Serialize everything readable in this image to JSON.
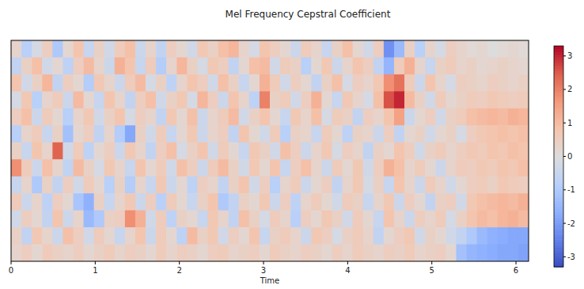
{
  "chart_data": {
    "type": "heatmap",
    "title": "Mel Frequency Cepstral Coefficient",
    "x_label": "Time",
    "xlim": [
      0,
      6.15
    ],
    "xticks": [
      0,
      1,
      2,
      3,
      4,
      5,
      6
    ],
    "tick_labels": "x",
    "colorbar_range": [
      -3.3,
      3.3
    ],
    "colorbar_ticks": [
      3,
      2,
      1,
      0,
      -1,
      -2,
      -3
    ],
    "cells": [
      [
        0.3,
        -0.8,
        -0.2,
        0.5,
        -1.0,
        0.2,
        0.8,
        -0.5,
        0.4,
        -0.3,
        0.6,
        0.9,
        -0.4,
        0.3,
        -0.6,
        0.5,
        0.2,
        -0.3,
        0.7,
        0.4,
        0.9,
        1.1,
        0.3,
        -0.2,
        0.8,
        0.5,
        0.2,
        -0.4,
        0.6,
        0.3,
        -0.5,
        0.4,
        0.9,
        0.2,
        -0.3,
        0.5,
        -2.2,
        -1.4,
        0.4,
        -0.8,
        0.3,
        -0.2,
        0.5,
        0.3,
        0.1,
        0.2,
        0.0,
        0.1,
        0.2,
        0.1
      ],
      [
        -0.6,
        0.4,
        0.9,
        -0.3,
        0.2,
        -0.7,
        0.5,
        1.0,
        0.3,
        -0.4,
        1.2,
        0.8,
        -0.5,
        0.6,
        -0.9,
        0.3,
        1.1,
        0.4,
        -0.2,
        0.7,
        0.5,
        -0.6,
        0.2,
        0.9,
        1.0,
        -0.3,
        0.6,
        0.4,
        -0.8,
        0.2,
        0.7,
        -0.4,
        0.3,
        0.8,
        0.5,
        -0.6,
        -1.5,
        0.6,
        1.2,
        0.3,
        -0.5,
        0.4,
        0.6,
        0.3,
        0.4,
        0.2,
        0.3,
        0.4,
        0.3,
        0.2
      ],
      [
        0.8,
        -0.3,
        0.4,
        1.1,
        -0.6,
        0.5,
        0.2,
        -0.9,
        0.7,
        0.3,
        -0.4,
        0.6,
        1.0,
        -0.2,
        0.4,
        -0.7,
        0.3,
        0.8,
        0.5,
        -0.3,
        0.9,
        0.4,
        -0.5,
        0.2,
        1.2,
        0.6,
        -0.3,
        0.5,
        0.2,
        -0.6,
        0.4,
        0.9,
        -0.2,
        0.5,
        0.3,
        0.7,
        1.8,
        2.2,
        0.6,
        -0.4,
        0.8,
        0.3,
        -0.2,
        0.5,
        0.4,
        0.3,
        0.5,
        0.4,
        0.3,
        0.4
      ],
      [
        -0.2,
        0.7,
        -0.8,
        0.3,
        0.6,
        -0.4,
        1.0,
        0.2,
        -0.5,
        0.8,
        0.3,
        -0.6,
        0.5,
        0.9,
        -0.3,
        0.4,
        0.7,
        -0.2,
        1.1,
        0.5,
        -0.4,
        0.8,
        0.3,
        -0.7,
        2.0,
        0.4,
        0.6,
        -0.3,
        0.5,
        1.2,
        0.2,
        -0.5,
        0.7,
        0.3,
        -0.2,
        0.9,
        2.6,
        3.0,
        1.0,
        0.4,
        -0.3,
        0.6,
        0.2,
        0.4,
        0.6,
        0.5,
        0.7,
        0.6,
        0.5,
        0.6
      ],
      [
        0.5,
        0.9,
        -0.4,
        0.6,
        0.2,
        -0.8,
        0.3,
        0.7,
        -0.3,
        0.4,
        0.8,
        -0.2,
        0.5,
        0.3,
        -0.6,
        0.7,
        0.2,
        0.9,
        -0.4,
        0.3,
        0.6,
        1.0,
        -0.3,
        0.4,
        0.8,
        0.2,
        -0.5,
        0.7,
        0.3,
        0.9,
        -0.2,
        0.6,
        0.4,
        -0.6,
        0.5,
        0.3,
        0.8,
        1.5,
        -0.4,
        0.2,
        0.5,
        -0.3,
        0.4,
        0.6,
        0.9,
        1.0,
        1.1,
        1.0,
        1.2,
        1.1
      ],
      [
        -0.8,
        0.3,
        0.6,
        -0.5,
        0.4,
        -1.2,
        0.2,
        0.5,
        -0.6,
        0.3,
        -0.9,
        -1.8,
        0.4,
        -0.3,
        0.6,
        -0.5,
        0.2,
        0.7,
        -0.4,
        0.3,
        0.5,
        -0.6,
        0.8,
        0.2,
        -0.3,
        0.6,
        -0.8,
        0.4,
        0.3,
        -0.5,
        0.6,
        0.2,
        -0.7,
        0.4,
        0.3,
        -0.4,
        0.5,
        -0.6,
        0.2,
        0.4,
        -0.3,
        0.2,
        0.4,
        -0.2,
        0.5,
        0.7,
        0.8,
        0.9,
        0.8,
        0.9
      ],
      [
        0.4,
        -0.5,
        0.8,
        0.3,
        2.4,
        -0.3,
        0.6,
        -0.7,
        0.2,
        0.5,
        -0.4,
        0.7,
        0.3,
        -0.6,
        0.5,
        0.9,
        -0.2,
        0.4,
        0.8,
        -0.3,
        0.6,
        0.2,
        -0.5,
        0.7,
        0.4,
        -0.3,
        0.9,
        0.5,
        -0.4,
        0.3,
        0.7,
        -0.2,
        0.5,
        0.3,
        -0.6,
        0.4,
        0.2,
        0.8,
        0.5,
        -0.3,
        0.4,
        0.6,
        0.3,
        0.5,
        0.7,
        0.6,
        0.8,
        0.7,
        0.9,
        0.8
      ],
      [
        1.8,
        0.6,
        -0.4,
        0.9,
        0.3,
        -0.6,
        1.0,
        0.4,
        -0.2,
        0.7,
        0.3,
        -0.5,
        0.8,
        0.2,
        0.6,
        -0.3,
        0.9,
        0.5,
        -0.4,
        0.6,
        1.0,
        0.4,
        -0.3,
        0.7,
        0.2,
        0.8,
        -0.5,
        0.5,
        0.9,
        0.3,
        -0.4,
        0.6,
        0.2,
        0.7,
        -0.3,
        0.5,
        1.2,
        0.9,
        0.3,
        0.6,
        0.2,
        -0.4,
        0.3,
        0.6,
        0.5,
        0.7,
        0.6,
        0.8,
        0.7,
        0.9
      ],
      [
        -0.5,
        0.3,
        -1.0,
        0.4,
        -0.6,
        0.5,
        -0.3,
        0.6,
        0.2,
        -0.8,
        0.4,
        -0.9,
        0.3,
        -0.5,
        0.7,
        -0.4,
        0.2,
        -0.7,
        0.5,
        0.3,
        -0.6,
        0.4,
        0.8,
        -0.3,
        0.5,
        -0.8,
        0.3,
        0.6,
        -0.4,
        0.2,
        0.5,
        -0.6,
        0.3,
        0.7,
        -0.2,
        0.4,
        -0.5,
        0.8,
        0.3,
        -0.4,
        0.6,
        0.3,
        -0.3,
        0.2,
        0.5,
        0.6,
        0.4,
        0.7,
        0.6,
        0.5
      ],
      [
        0.6,
        -0.4,
        0.3,
        -0.7,
        0.5,
        0.2,
        -1.1,
        -1.6,
        0.4,
        -0.5,
        0.3,
        0.7,
        -0.4,
        0.5,
        -0.8,
        0.6,
        0.2,
        -0.5,
        0.4,
        0.8,
        -1.0,
        -0.6,
        0.4,
        0.2,
        0.7,
        -0.4,
        0.5,
        -0.7,
        0.3,
        0.6,
        0.2,
        -0.3,
        0.6,
        0.4,
        -0.5,
        0.3,
        0.7,
        -0.4,
        0.5,
        0.2,
        -0.6,
        0.4,
        0.5,
        -0.3,
        0.7,
        0.9,
        1.0,
        1.1,
        1.0,
        1.2
      ],
      [
        -0.3,
        0.5,
        0.2,
        -0.6,
        0.8,
        -0.4,
        0.3,
        -1.4,
        -1.0,
        0.4,
        0.5,
        1.8,
        1.2,
        -0.3,
        0.6,
        -0.7,
        0.4,
        0.2,
        -0.5,
        0.7,
        0.3,
        -0.6,
        0.9,
        0.4,
        -0.2,
        0.6,
        0.3,
        -0.8,
        0.5,
        0.2,
        0.7,
        0.4,
        -0.3,
        0.6,
        0.2,
        -0.5,
        0.8,
        0.3,
        -0.4,
        0.5,
        0.3,
        0.6,
        -0.2,
        0.4,
        0.8,
        1.0,
        0.9,
        1.1,
        1.2,
        1.0
      ],
      [
        0.4,
        -0.6,
        0.7,
        0.3,
        -0.4,
        0.9,
        0.5,
        -0.3,
        0.6,
        0.2,
        -0.5,
        0.3,
        0.8,
        -0.4,
        0.6,
        0.2,
        -0.7,
        1.0,
        0.4,
        0.7,
        -0.3,
        0.5,
        0.2,
        0.8,
        -0.5,
        0.4,
        0.6,
        0.3,
        -0.4,
        0.7,
        0.5,
        -0.2,
        0.4,
        0.6,
        0.3,
        -0.6,
        0.2,
        0.5,
        0.7,
        -0.3,
        0.4,
        0.2,
        -0.3,
        -0.6,
        -1.0,
        -1.4,
        -1.6,
        -1.7,
        -1.8,
        -1.8
      ],
      [
        0.3,
        0.5,
        0.2,
        0.6,
        0.4,
        0.3,
        0.5,
        0.2,
        0.4,
        0.6,
        0.3,
        0.5,
        0.4,
        0.2,
        0.6,
        0.3,
        0.5,
        0.4,
        0.2,
        0.5,
        0.6,
        0.3,
        0.4,
        0.5,
        0.2,
        0.6,
        0.4,
        0.3,
        0.5,
        0.4,
        0.2,
        0.5,
        0.3,
        0.6,
        0.4,
        0.3,
        0.5,
        0.4,
        0.6,
        0.3,
        0.4,
        0.5,
        0.2,
        -1.2,
        -1.5,
        -1.6,
        -1.7,
        -1.8,
        -1.8,
        -1.9
      ]
    ]
  }
}
